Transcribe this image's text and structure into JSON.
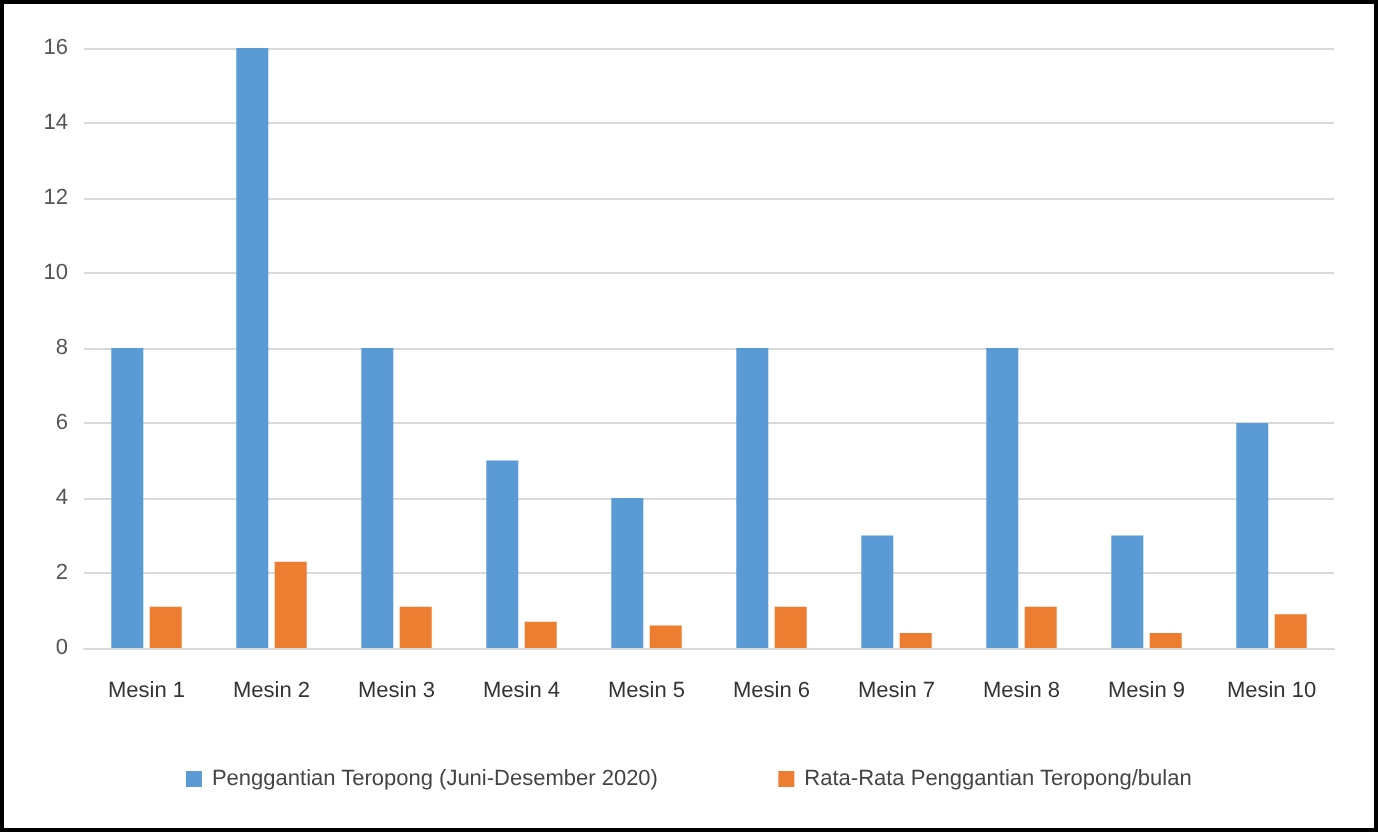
{
  "chart_data": {
    "type": "bar",
    "categories": [
      "Mesin 1",
      "Mesin 2",
      "Mesin 3",
      "Mesin 4",
      "Mesin 5",
      "Mesin 6",
      "Mesin 7",
      "Mesin 8",
      "Mesin 9",
      "Mesin 10"
    ],
    "series": [
      {
        "name": "Penggantian Teropong (Juni-Desember 2020)",
        "color": "#5b9bd5",
        "values": [
          8,
          16,
          8,
          5,
          4,
          8,
          3,
          8,
          3,
          6
        ]
      },
      {
        "name": "Rata-Rata Penggantian Teropong/bulan",
        "color": "#ed7d31",
        "values": [
          1.1,
          2.3,
          1.1,
          0.7,
          0.6,
          1.1,
          0.4,
          1.1,
          0.4,
          0.9
        ]
      }
    ],
    "ylim": [
      0,
      16
    ],
    "yticks": [
      0,
      2,
      4,
      6,
      8,
      10,
      12,
      14,
      16
    ],
    "grid": "y",
    "legend": "bottom"
  }
}
